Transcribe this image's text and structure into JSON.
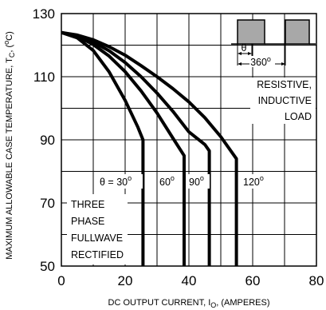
{
  "chart_data": {
    "type": "line",
    "xlabel": {
      "main": "DC OUTPUT CURRENT, I",
      "sub": "O",
      "rest": ", (AMPERES)"
    },
    "ylabel": {
      "main": "MAXIMUM ALLOWABLE CASE TEMPERATURE, T",
      "sub": "C",
      "rest": ", (",
      "deg": "o",
      "unit": "C)"
    },
    "xlim": [
      0,
      80
    ],
    "ylim": [
      50,
      130
    ],
    "x_ticks": [
      "0",
      "20",
      "40",
      "60",
      "80"
    ],
    "y_ticks": [
      "50",
      "70",
      "90",
      "110",
      "130"
    ],
    "grid": true,
    "series": [
      {
        "points": [
          [
            0,
            124
          ],
          [
            5,
            122.3
          ],
          [
            10,
            118.3
          ],
          [
            15,
            111.5
          ],
          [
            20,
            102.5
          ],
          [
            24,
            94
          ],
          [
            25.6,
            90
          ],
          [
            25.6,
            50
          ]
        ]
      },
      {
        "points": [
          [
            0,
            124
          ],
          [
            5,
            122.8
          ],
          [
            10,
            120.2
          ],
          [
            15,
            116.5
          ],
          [
            20,
            111.6
          ],
          [
            25,
            105.5
          ],
          [
            30,
            98.5
          ],
          [
            35,
            90.5
          ],
          [
            38.5,
            85
          ],
          [
            38.5,
            50
          ]
        ]
      },
      {
        "points": [
          [
            0,
            124
          ],
          [
            5,
            123
          ],
          [
            10,
            121
          ],
          [
            15,
            118.2
          ],
          [
            20,
            114.5
          ],
          [
            25,
            110
          ],
          [
            30,
            104.8
          ],
          [
            35,
            99
          ],
          [
            40,
            92.5
          ],
          [
            45,
            88.5
          ],
          [
            46.4,
            86.5
          ],
          [
            46.4,
            50
          ]
        ]
      },
      {
        "points": [
          [
            0,
            124
          ],
          [
            5,
            123.2
          ],
          [
            10,
            121.7
          ],
          [
            15,
            119.5
          ],
          [
            20,
            116.8
          ],
          [
            25,
            113.5
          ],
          [
            30,
            110
          ],
          [
            35,
            106.2
          ],
          [
            40,
            102
          ],
          [
            45,
            97
          ],
          [
            50,
            91
          ],
          [
            54.9,
            84
          ],
          [
            54.9,
            50
          ]
        ]
      }
    ],
    "annotations": {
      "angle_labels": [
        {
          "prefix": "θ = ",
          "value": "30",
          "deg": "o"
        },
        {
          "prefix": "",
          "value": "60",
          "deg": "o"
        },
        {
          "prefix": "",
          "value": "90",
          "deg": "o"
        },
        {
          "prefix": "",
          "value": "120",
          "deg": "o"
        }
      ],
      "circuit_lines": [
        "THREE",
        "PHASE",
        "FULLWAVE",
        "RECTIFIED"
      ],
      "load_lines": [
        "RESISTIVE,",
        "INDUCTIVE",
        "LOAD"
      ],
      "waveform_theta": "θ",
      "waveform_period": "360",
      "waveform_period_deg": "o",
      "colors": {
        "pulse_fill": "#a8a8a8",
        "curve": "#000000",
        "grid": "#000000"
      }
    }
  }
}
